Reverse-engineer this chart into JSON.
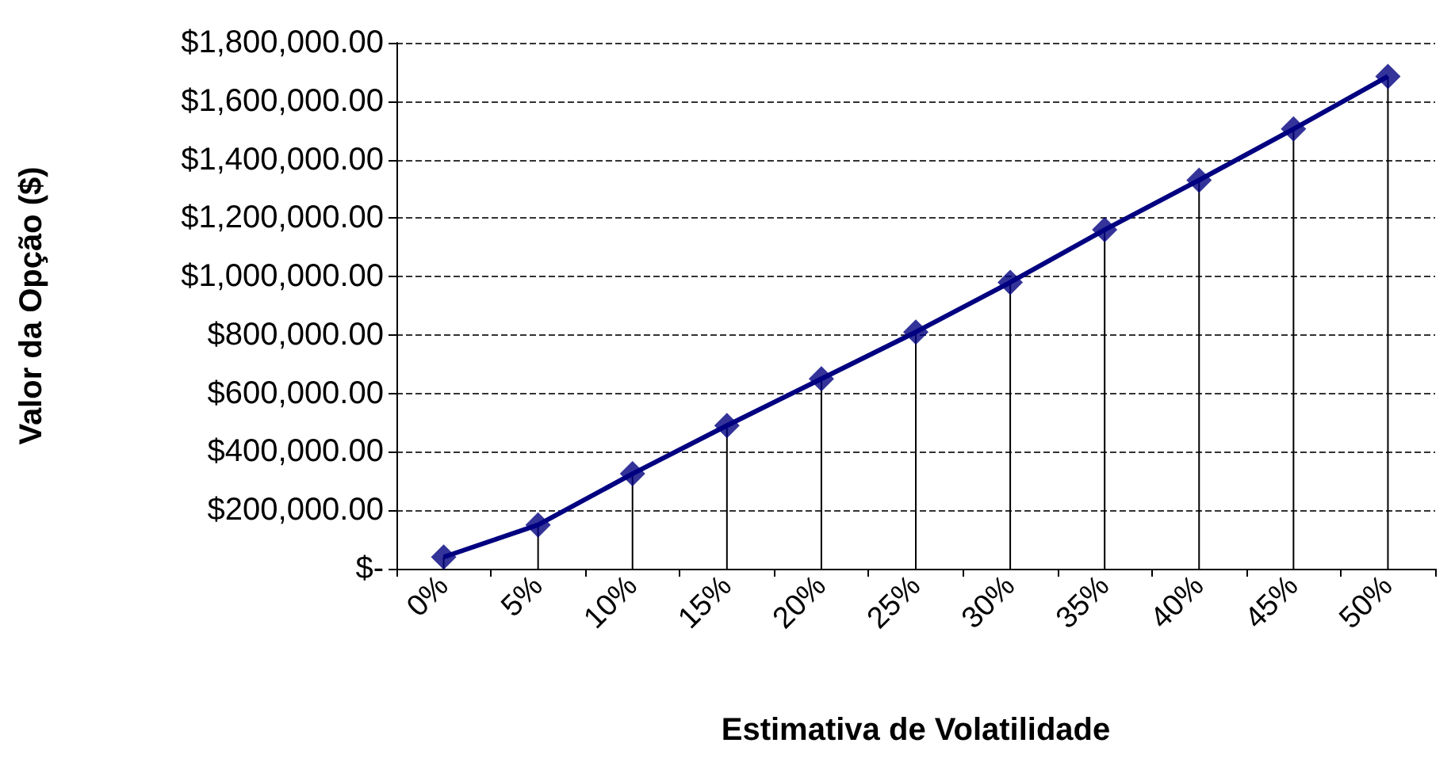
{
  "chart_data": {
    "type": "line",
    "xlabel": "Estimativa de Volatilidade",
    "ylabel": "Valor da Opção ($)",
    "categories": [
      "0%",
      "5%",
      "10%",
      "15%",
      "20%",
      "25%",
      "30%",
      "35%",
      "40%",
      "45%",
      "50%"
    ],
    "series": [
      {
        "color": "#000080",
        "marker": "none",
        "values": [
          40000,
          150000,
          325000,
          490000,
          650000,
          810000,
          980000,
          1160000,
          1330000,
          1505000,
          1685000
        ]
      },
      {
        "type": "lollipop",
        "color": "#000080",
        "values": [
          40000,
          150000,
          325000,
          490000,
          650000,
          810000,
          980000,
          1160000,
          1330000,
          1505000,
          1685000
        ]
      }
    ],
    "ylim": [
      0,
      1800000
    ],
    "yticks": [
      {
        "value": 0,
        "label": "$-"
      },
      {
        "value": 200000,
        "label": "$200,000.00"
      },
      {
        "value": 400000,
        "label": "$400,000.00"
      },
      {
        "value": 600000,
        "label": "$600,000.00"
      },
      {
        "value": 800000,
        "label": "$800,000.00"
      },
      {
        "value": 1000000,
        "label": "$1,000,000.00"
      },
      {
        "value": 1200000,
        "label": "$1,200,000.00"
      },
      {
        "value": 1400000,
        "label": "$1,400,000.00"
      },
      {
        "value": 1600000,
        "label": "$1,600,000.00"
      },
      {
        "value": 1800000,
        "label": "$1,800,000.00"
      }
    ],
    "grid": "y",
    "marker": "diamond",
    "line_style": "solid"
  }
}
